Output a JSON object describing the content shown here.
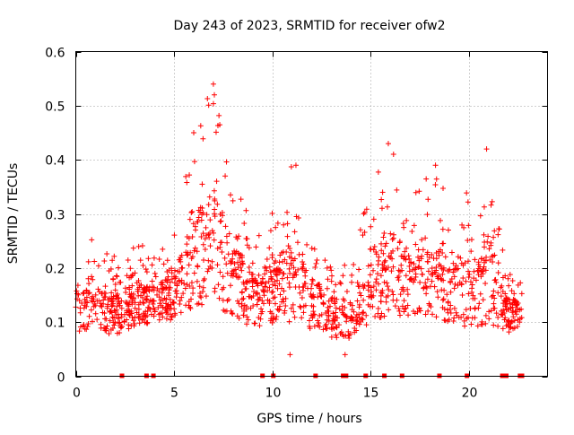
{
  "chart_data": {
    "type": "scatter",
    "title": "Day 243 of 2023, SRMTID for receiver ofw2",
    "xlabel": "GPS time / hours",
    "ylabel": "SRMTID / TECUs",
    "xlim": [
      0,
      24
    ],
    "ylim": [
      0,
      0.6
    ],
    "x_ticks": [
      0,
      5,
      10,
      15,
      20
    ],
    "x_tick_labels": [
      "0",
      "5",
      "10",
      "15",
      "20"
    ],
    "y_ticks": [
      0,
      0.1,
      0.2,
      0.3,
      0.4,
      0.5,
      0.6
    ],
    "y_tick_labels": [
      "0",
      "0.1",
      "0.2",
      "0.3",
      "0.4",
      "0.5",
      "0.6"
    ],
    "grid": true,
    "marker": "plus",
    "color": "#ff0000",
    "envelope_hours": [
      0,
      1,
      2,
      3,
      4,
      5,
      6,
      7,
      8,
      9,
      10,
      11,
      12,
      13,
      14,
      15,
      16,
      17,
      18,
      19,
      20,
      21,
      22,
      22.7
    ],
    "envelope_low": [
      0.07,
      0.07,
      0.06,
      0.08,
      0.09,
      0.09,
      0.1,
      0.1,
      0.09,
      0.07,
      0.08,
      0.08,
      0.07,
      0.06,
      0.06,
      0.08,
      0.09,
      0.09,
      0.08,
      0.08,
      0.07,
      0.07,
      0.07,
      0.09
    ],
    "envelope_high": [
      0.24,
      0.27,
      0.22,
      0.25,
      0.23,
      0.28,
      0.45,
      0.55,
      0.37,
      0.29,
      0.31,
      0.39,
      0.28,
      0.22,
      0.2,
      0.36,
      0.43,
      0.32,
      0.39,
      0.33,
      0.35,
      0.42,
      0.2,
      0.18
    ],
    "peaks": [
      {
        "x": 6.0,
        "y": 0.45
      },
      {
        "x": 7.0,
        "y": 0.54
      },
      {
        "x": 7.05,
        "y": 0.52
      },
      {
        "x": 7.6,
        "y": 0.37
      },
      {
        "x": 11.2,
        "y": 0.39
      },
      {
        "x": 15.9,
        "y": 0.43
      },
      {
        "x": 18.3,
        "y": 0.39
      },
      {
        "x": 20.9,
        "y": 0.42
      },
      {
        "x": 10.9,
        "y": 0.04
      },
      {
        "x": 13.7,
        "y": 0.04
      }
    ],
    "data_gaps_hours": [
      2.35,
      3.6,
      3.95,
      9.5,
      10.05,
      12.2,
      13.6,
      13.75,
      14.75,
      15.7,
      16.6,
      18.5,
      19.9,
      21.7,
      21.9,
      22.6,
      22.7
    ],
    "approx_point_count": 1500
  }
}
